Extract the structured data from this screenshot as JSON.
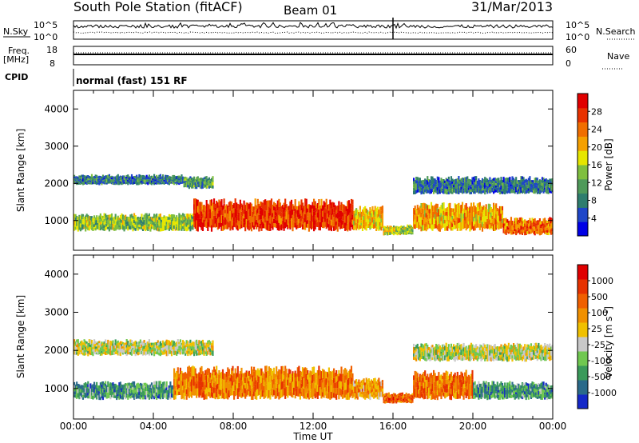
{
  "header": {
    "station": "South Pole Station (fitACF)",
    "beam": "Beam 01",
    "date": "31/Mar/2013"
  },
  "top_panels": {
    "nsky_label": "N.Sky",
    "nsky_ticks": [
      "10^5",
      "10^0"
    ],
    "nsearch_label": "N.Search",
    "nsearch_ticks": [
      "10^5",
      "10^0"
    ],
    "freq_label": "Freq.",
    "freq_unit": "[MHz]",
    "freq_ticks": [
      "18",
      "8"
    ],
    "nave_label": "Nave",
    "nave_ticks": [
      "60",
      "0"
    ],
    "cpid_label": "CPID",
    "cpid_value": "normal (fast) 151 RF"
  },
  "chart_data": [
    {
      "type": "heatmap",
      "name": "power",
      "ylabel": "Slant Range [km]",
      "ylim": [
        200,
        4500
      ],
      "yticks": [
        1000,
        2000,
        3000,
        4000
      ],
      "xlim": [
        0,
        24
      ],
      "colorbar": {
        "label": "Power [dB]",
        "ticks": [
          "28",
          "24",
          "20",
          "16",
          "12",
          "8",
          "4"
        ],
        "colors": [
          "#0000e6",
          "#1e46c8",
          "#2e7d6e",
          "#4f9a5a",
          "#7fbf3f",
          "#e6e600",
          "#f5a000",
          "#f06e00",
          "#e83200",
          "#e10000"
        ]
      },
      "bands": [
        {
          "t0": 0.0,
          "t1": 5.5,
          "r0": 1950,
          "r1": 2250,
          "level": 0.25
        },
        {
          "t0": 5.5,
          "t1": 7.0,
          "r0": 1850,
          "r1": 2200,
          "level": 0.35
        },
        {
          "t0": 0.0,
          "t1": 6.0,
          "r0": 700,
          "r1": 1200,
          "level": 0.45
        },
        {
          "t0": 6.0,
          "t1": 14.0,
          "r0": 700,
          "r1": 1600,
          "level": 0.85
        },
        {
          "t0": 14.0,
          "t1": 15.5,
          "r0": 700,
          "r1": 1400,
          "level": 0.6
        },
        {
          "t0": 15.5,
          "t1": 17.0,
          "r0": 600,
          "r1": 900,
          "level": 0.5
        },
        {
          "t0": 17.0,
          "t1": 21.5,
          "r0": 700,
          "r1": 1500,
          "level": 0.65
        },
        {
          "t0": 21.5,
          "t1": 24.0,
          "r0": 600,
          "r1": 1100,
          "level": 0.75
        },
        {
          "t0": 17.0,
          "t1": 24.0,
          "r0": 1700,
          "r1": 2200,
          "level": 0.25
        }
      ]
    },
    {
      "type": "heatmap",
      "name": "velocity",
      "ylabel": "Slant Range [km]",
      "ylim": [
        200,
        4500
      ],
      "yticks": [
        1000,
        2000,
        3000,
        4000
      ],
      "xlim": [
        0,
        24
      ],
      "colorbar": {
        "label": "Velocity [m s",
        "label_sup": "-1",
        "label_end": "]",
        "ticks": [
          "1000",
          "500",
          "100",
          "25",
          "-25",
          "-100",
          "-500",
          "-1000"
        ],
        "colors": [
          "#1428c8",
          "#2a6a8a",
          "#3a9a5a",
          "#70c850",
          "#c8c8c8",
          "#f0c000",
          "#f09000",
          "#f06000",
          "#e63200",
          "#e00000"
        ]
      },
      "bands": [
        {
          "t0": 0.0,
          "t1": 7.0,
          "r0": 1850,
          "r1": 2300,
          "level": 0.45
        },
        {
          "t0": 0.0,
          "t1": 5.0,
          "r0": 700,
          "r1": 1200,
          "level": 0.25
        },
        {
          "t0": 5.0,
          "t1": 14.0,
          "r0": 700,
          "r1": 1600,
          "level": 0.7
        },
        {
          "t0": 14.0,
          "t1": 15.5,
          "r0": 700,
          "r1": 1300,
          "level": 0.65
        },
        {
          "t0": 15.5,
          "t1": 17.0,
          "r0": 600,
          "r1": 900,
          "level": 0.75
        },
        {
          "t0": 17.0,
          "t1": 20.0,
          "r0": 700,
          "r1": 1500,
          "level": 0.7
        },
        {
          "t0": 20.0,
          "t1": 24.0,
          "r0": 700,
          "r1": 1200,
          "level": 0.25
        },
        {
          "t0": 17.0,
          "t1": 24.0,
          "r0": 1700,
          "r1": 2200,
          "level": 0.45
        }
      ]
    }
  ],
  "xaxis": {
    "label": "Time UT",
    "ticks": [
      "00:00",
      "04:00",
      "08:00",
      "12:00",
      "16:00",
      "20:00",
      "00:00"
    ]
  }
}
